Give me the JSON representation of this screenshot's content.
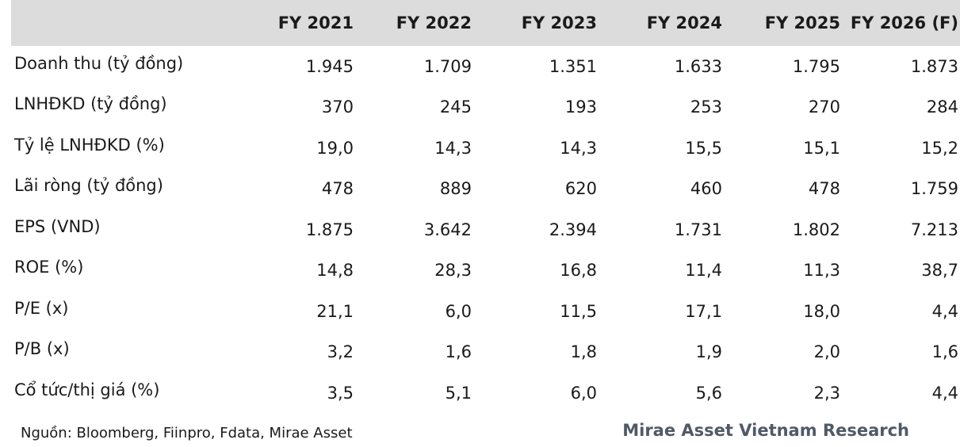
{
  "table": {
    "header": [
      "",
      "FY 2021",
      "FY 2022",
      "FY 2023",
      "FY 2024",
      "FY 2025",
      "FY 2026 (F)"
    ],
    "rows": [
      {
        "label": "Doanh thu (tỷ đồng)",
        "values": [
          "1.945",
          "1.709",
          "1.351",
          "1.633",
          "1.795",
          "1.873"
        ]
      },
      {
        "label": "LNHĐKD (tỷ đồng)",
        "values": [
          "370",
          "245",
          "193",
          "253",
          "270",
          "284"
        ]
      },
      {
        "label": "Tỷ lệ LNHĐKD (%)",
        "values": [
          "19,0",
          "14,3",
          "14,3",
          "15,5",
          "15,1",
          "15,2"
        ]
      },
      {
        "label": "Lãi ròng (tỷ đồng)",
        "values": [
          "478",
          "889",
          "620",
          "460",
          "478",
          "1.759"
        ]
      },
      {
        "label": "EPS (VND)",
        "values": [
          "1.875",
          "3.642",
          "2.394",
          "1.731",
          "1.802",
          "7.213"
        ]
      },
      {
        "label": "ROE (%)",
        "values": [
          "14,8",
          "28,3",
          "16,8",
          "11,4",
          "11,3",
          "38,7"
        ]
      },
      {
        "label": "P/E (x)",
        "values": [
          "21,1",
          "6,0",
          "11,5",
          "17,1",
          "18,0",
          "4,4"
        ]
      },
      {
        "label": "P/B (x)",
        "values": [
          "3,2",
          "1,6",
          "1,8",
          "1,9",
          "2,0",
          "1,6"
        ]
      },
      {
        "label": "Cổ tức/thị giá (%)",
        "values": [
          "3,5",
          "5,1",
          "6,0",
          "5,6",
          "2,3",
          "4,4"
        ]
      }
    ]
  },
  "footer": {
    "source": "Nguồn: Bloomberg, Fiinpro, Fdata, Mirae Asset",
    "brand": "Mirae Asset Vietnam Research"
  },
  "colors": {
    "header_bg": "#dcdcdc",
    "brand_text": "#505a66"
  }
}
